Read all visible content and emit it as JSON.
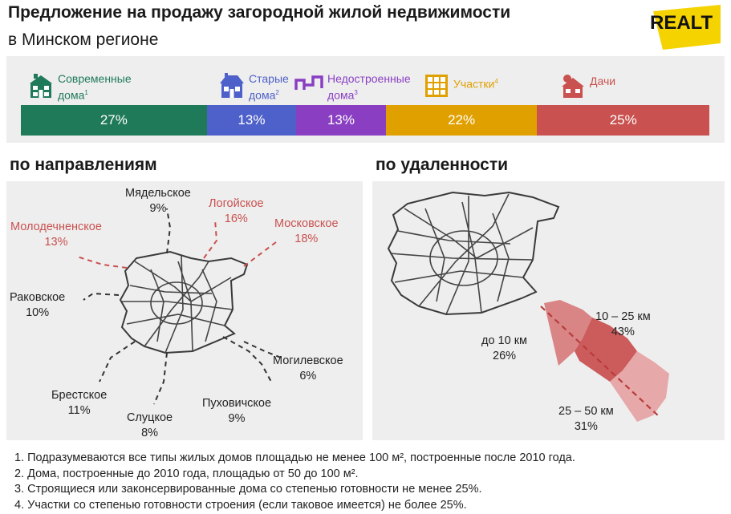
{
  "header": {
    "title": "Предложение на продажу загородной жилой недвижимости",
    "subtitle": "в Минском регионе",
    "logo_text": "REALT"
  },
  "chart_data": [
    {
      "type": "bar",
      "orientation": "horizontal-stacked",
      "categories": [
        "Современные дома",
        "Старые дома",
        "Недостроенные дома",
        "Участки",
        "Дачи"
      ],
      "values": [
        27,
        13,
        13,
        22,
        25
      ],
      "value_labels": [
        "27%",
        "13%",
        "13%",
        "22%",
        "25%"
      ],
      "legend": [
        {
          "line1": "Современные",
          "line2": "дома",
          "sup": "1",
          "color": "#1f7a5a",
          "icon": "house-icon"
        },
        {
          "line1": "Старые",
          "line2": "дома",
          "sup": "2",
          "color": "#4e60c9",
          "icon": "old-house-icon"
        },
        {
          "line1": "Недостроенные",
          "line2": "дома",
          "sup": "3",
          "color": "#8a3fc2",
          "icon": "unfinished-house-icon"
        },
        {
          "line1": "Участки",
          "line2": "",
          "sup": "4",
          "color": "#e0a000",
          "icon": "plot-icon"
        },
        {
          "line1": "Дачи",
          "line2": "",
          "sup": "",
          "color": "#c9514f",
          "icon": "dacha-icon"
        }
      ]
    },
    {
      "type": "map",
      "title": "по направлениям",
      "directions": [
        {
          "name": "Мядельское",
          "value": "9%",
          "highlight": false
        },
        {
          "name": "Логойское",
          "value": "16%",
          "highlight": true
        },
        {
          "name": "Молодечненское",
          "value": "13%",
          "highlight": true
        },
        {
          "name": "Московское",
          "value": "18%",
          "highlight": true
        },
        {
          "name": "Раковское",
          "value": "10%",
          "highlight": false
        },
        {
          "name": "Могилевское",
          "value": "6%",
          "highlight": false
        },
        {
          "name": "Брестское",
          "value": "11%",
          "highlight": false
        },
        {
          "name": "Пуховичское",
          "value": "9%",
          "highlight": false
        },
        {
          "name": "Слуцкое",
          "value": "8%",
          "highlight": false
        }
      ]
    },
    {
      "type": "map",
      "title": "по удаленности",
      "distances": [
        {
          "name": "до 10 км",
          "value": "26%"
        },
        {
          "name": "10 – 25 км",
          "value": "43%"
        },
        {
          "name": "25 – 50 км",
          "value": "31%"
        }
      ]
    }
  ],
  "footnotes": [
    "1. Подразумеваются все типы жилых домов площадью не менее 100 м², построенные после 2010 года.",
    "2. Дома, построенные до 2010 года, площадью от 50 до 100 м².",
    "3. Строящиеся или законсервированные дома со степенью готовности не менее 25%.",
    "4. Участки со степенью готовности строения (если таковое имеется) не более 25%."
  ]
}
